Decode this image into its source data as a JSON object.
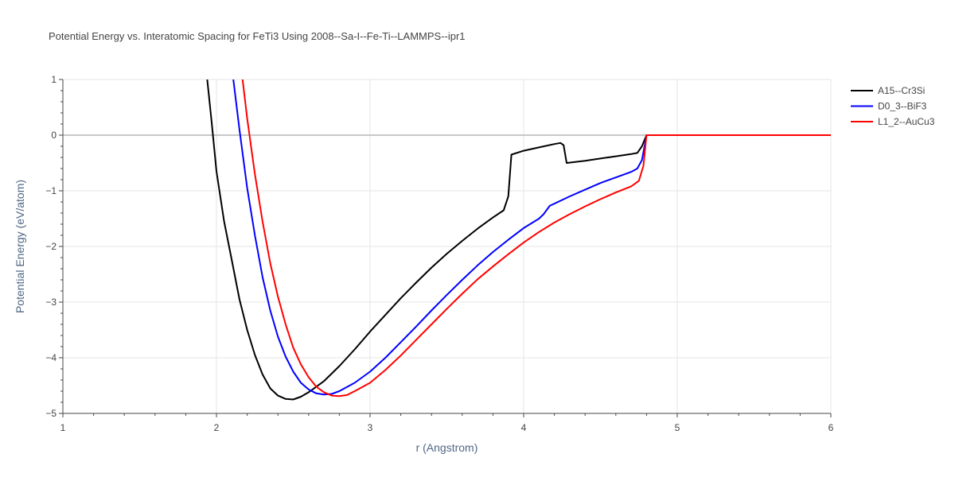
{
  "chart_data": {
    "type": "line",
    "title": "Potential Energy vs. Interatomic Spacing for FeTi3 Using 2008--Sa-I--Fe-Ti--LAMMPS--ipr1",
    "xlabel": "r (Angstrom)",
    "ylabel": "Potential Energy (eV/atom)",
    "xlim": [
      1,
      6
    ],
    "ylim": [
      -5,
      1
    ],
    "xticks": [
      "1",
      "2",
      "3",
      "4",
      "5",
      "6"
    ],
    "yticks": [
      "1",
      "0",
      "−1",
      "−2",
      "−3",
      "−4",
      "−5"
    ],
    "grid": true,
    "legend_position": "top-right",
    "series": [
      {
        "name": "A15--Cr3Si",
        "color": "#000000",
        "points": [
          [
            1.94,
            1.0
          ],
          [
            1.97,
            0.2
          ],
          [
            2.0,
            -0.65
          ],
          [
            2.05,
            -1.55
          ],
          [
            2.1,
            -2.25
          ],
          [
            2.15,
            -2.95
          ],
          [
            2.2,
            -3.5
          ],
          [
            2.25,
            -3.95
          ],
          [
            2.3,
            -4.3
          ],
          [
            2.35,
            -4.55
          ],
          [
            2.4,
            -4.68
          ],
          [
            2.45,
            -4.74
          ],
          [
            2.5,
            -4.75
          ],
          [
            2.55,
            -4.7
          ],
          [
            2.6,
            -4.62
          ],
          [
            2.7,
            -4.42
          ],
          [
            2.8,
            -4.15
          ],
          [
            2.9,
            -3.85
          ],
          [
            3.0,
            -3.53
          ],
          [
            3.1,
            -3.23
          ],
          [
            3.2,
            -2.93
          ],
          [
            3.3,
            -2.65
          ],
          [
            3.4,
            -2.38
          ],
          [
            3.5,
            -2.13
          ],
          [
            3.6,
            -1.9
          ],
          [
            3.7,
            -1.68
          ],
          [
            3.8,
            -1.48
          ],
          [
            3.87,
            -1.35
          ],
          [
            3.9,
            -1.1
          ],
          [
            3.92,
            -0.35
          ],
          [
            4.0,
            -0.28
          ],
          [
            4.1,
            -0.22
          ],
          [
            4.2,
            -0.16
          ],
          [
            4.24,
            -0.14
          ],
          [
            4.26,
            -0.18
          ],
          [
            4.28,
            -0.5
          ],
          [
            4.4,
            -0.46
          ],
          [
            4.5,
            -0.42
          ],
          [
            4.6,
            -0.38
          ],
          [
            4.7,
            -0.34
          ],
          [
            4.74,
            -0.32
          ],
          [
            4.77,
            -0.2
          ],
          [
            4.8,
            0.0
          ],
          [
            6.0,
            0.0
          ]
        ]
      },
      {
        "name": "D0_3--BiF3",
        "color": "#0000ff",
        "points": [
          [
            2.11,
            1.0
          ],
          [
            2.15,
            0.1
          ],
          [
            2.2,
            -0.95
          ],
          [
            2.25,
            -1.8
          ],
          [
            2.3,
            -2.55
          ],
          [
            2.35,
            -3.15
          ],
          [
            2.4,
            -3.62
          ],
          [
            2.45,
            -3.98
          ],
          [
            2.5,
            -4.25
          ],
          [
            2.55,
            -4.45
          ],
          [
            2.6,
            -4.57
          ],
          [
            2.65,
            -4.64
          ],
          [
            2.7,
            -4.66
          ],
          [
            2.75,
            -4.65
          ],
          [
            2.8,
            -4.6
          ],
          [
            2.9,
            -4.45
          ],
          [
            3.0,
            -4.25
          ],
          [
            3.1,
            -4.0
          ],
          [
            3.2,
            -3.72
          ],
          [
            3.3,
            -3.44
          ],
          [
            3.4,
            -3.15
          ],
          [
            3.5,
            -2.87
          ],
          [
            3.6,
            -2.6
          ],
          [
            3.7,
            -2.34
          ],
          [
            3.8,
            -2.1
          ],
          [
            3.9,
            -1.88
          ],
          [
            4.0,
            -1.67
          ],
          [
            4.1,
            -1.5
          ],
          [
            4.13,
            -1.42
          ],
          [
            4.17,
            -1.27
          ],
          [
            4.3,
            -1.1
          ],
          [
            4.4,
            -0.98
          ],
          [
            4.5,
            -0.86
          ],
          [
            4.6,
            -0.76
          ],
          [
            4.7,
            -0.66
          ],
          [
            4.74,
            -0.6
          ],
          [
            4.77,
            -0.45
          ],
          [
            4.8,
            0.0
          ],
          [
            6.0,
            0.0
          ]
        ]
      },
      {
        "name": "L1_2--AuCu3",
        "color": "#ff0000",
        "points": [
          [
            2.17,
            1.0
          ],
          [
            2.2,
            0.3
          ],
          [
            2.25,
            -0.7
          ],
          [
            2.3,
            -1.55
          ],
          [
            2.35,
            -2.3
          ],
          [
            2.4,
            -2.9
          ],
          [
            2.45,
            -3.4
          ],
          [
            2.5,
            -3.82
          ],
          [
            2.55,
            -4.12
          ],
          [
            2.6,
            -4.35
          ],
          [
            2.65,
            -4.52
          ],
          [
            2.7,
            -4.62
          ],
          [
            2.75,
            -4.68
          ],
          [
            2.8,
            -4.69
          ],
          [
            2.85,
            -4.67
          ],
          [
            2.9,
            -4.6
          ],
          [
            3.0,
            -4.45
          ],
          [
            3.1,
            -4.22
          ],
          [
            3.2,
            -3.96
          ],
          [
            3.3,
            -3.68
          ],
          [
            3.4,
            -3.4
          ],
          [
            3.5,
            -3.12
          ],
          [
            3.6,
            -2.85
          ],
          [
            3.7,
            -2.59
          ],
          [
            3.8,
            -2.36
          ],
          [
            3.9,
            -2.14
          ],
          [
            4.0,
            -1.93
          ],
          [
            4.1,
            -1.74
          ],
          [
            4.2,
            -1.57
          ],
          [
            4.3,
            -1.42
          ],
          [
            4.4,
            -1.28
          ],
          [
            4.5,
            -1.15
          ],
          [
            4.6,
            -1.03
          ],
          [
            4.7,
            -0.92
          ],
          [
            4.75,
            -0.82
          ],
          [
            4.78,
            -0.55
          ],
          [
            4.8,
            0.0
          ],
          [
            6.0,
            0.0
          ]
        ]
      }
    ]
  }
}
